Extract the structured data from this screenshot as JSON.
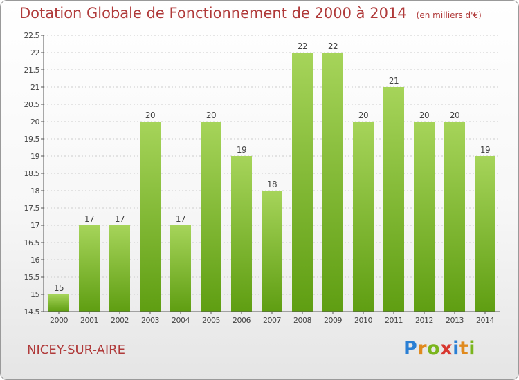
{
  "header": {
    "title": "Dotation Globale de Fonctionnement de 2000 à 2014",
    "subtitle": "(en milliers d'€)"
  },
  "footer": {
    "commune": "NICEY-SUR-AIRE",
    "logo_text": "Proxiti",
    "logo_letters": [
      {
        "char": "P",
        "color": "#2a7fd4"
      },
      {
        "char": "r",
        "color": "#e08a1e"
      },
      {
        "char": "o",
        "color": "#7ab51d"
      },
      {
        "char": "x",
        "color": "#d8372f"
      },
      {
        "char": "i",
        "color": "#2a7fd4"
      },
      {
        "char": "t",
        "color": "#e08a1e"
      },
      {
        "char": "i",
        "color": "#7ab51d"
      }
    ]
  },
  "colors": {
    "bar_top": "#a6d45a",
    "bar_bottom": "#5f9e12",
    "axis": "#555555",
    "grid": "#cccccc",
    "text": "#444444",
    "title": "#b03a3a"
  },
  "chart_data": {
    "type": "bar",
    "title": "Dotation Globale de Fonctionnement de 2000 à 2014",
    "subtitle": "(en milliers d'€)",
    "xlabel": "",
    "ylabel": "",
    "categories": [
      "2000",
      "2001",
      "2002",
      "2003",
      "2004",
      "2005",
      "2006",
      "2007",
      "2008",
      "2009",
      "2010",
      "2011",
      "2012",
      "2013",
      "2014"
    ],
    "values": [
      15,
      17,
      17,
      20,
      17,
      20,
      19,
      18,
      22,
      22,
      20,
      21,
      20,
      20,
      19
    ],
    "data_labels": [
      "15",
      "17",
      "17",
      "20",
      "17",
      "20",
      "19",
      "18",
      "22",
      "22",
      "20",
      "21",
      "20",
      "20",
      "19"
    ],
    "ylim": [
      14.5,
      22.5
    ],
    "yticks": [
      14.5,
      15,
      15.5,
      16,
      16.5,
      17,
      17.5,
      18,
      18.5,
      19,
      19.5,
      20,
      20.5,
      21,
      21.5,
      22,
      22.5
    ],
    "ytick_labels": [
      "14.5",
      "15",
      "15.5",
      "16",
      "16.5",
      "17",
      "17.5",
      "18",
      "18.5",
      "19",
      "19.5",
      "20",
      "20.5",
      "21",
      "21.5",
      "22",
      "22.5"
    ],
    "grid": true,
    "legend": "none"
  }
}
